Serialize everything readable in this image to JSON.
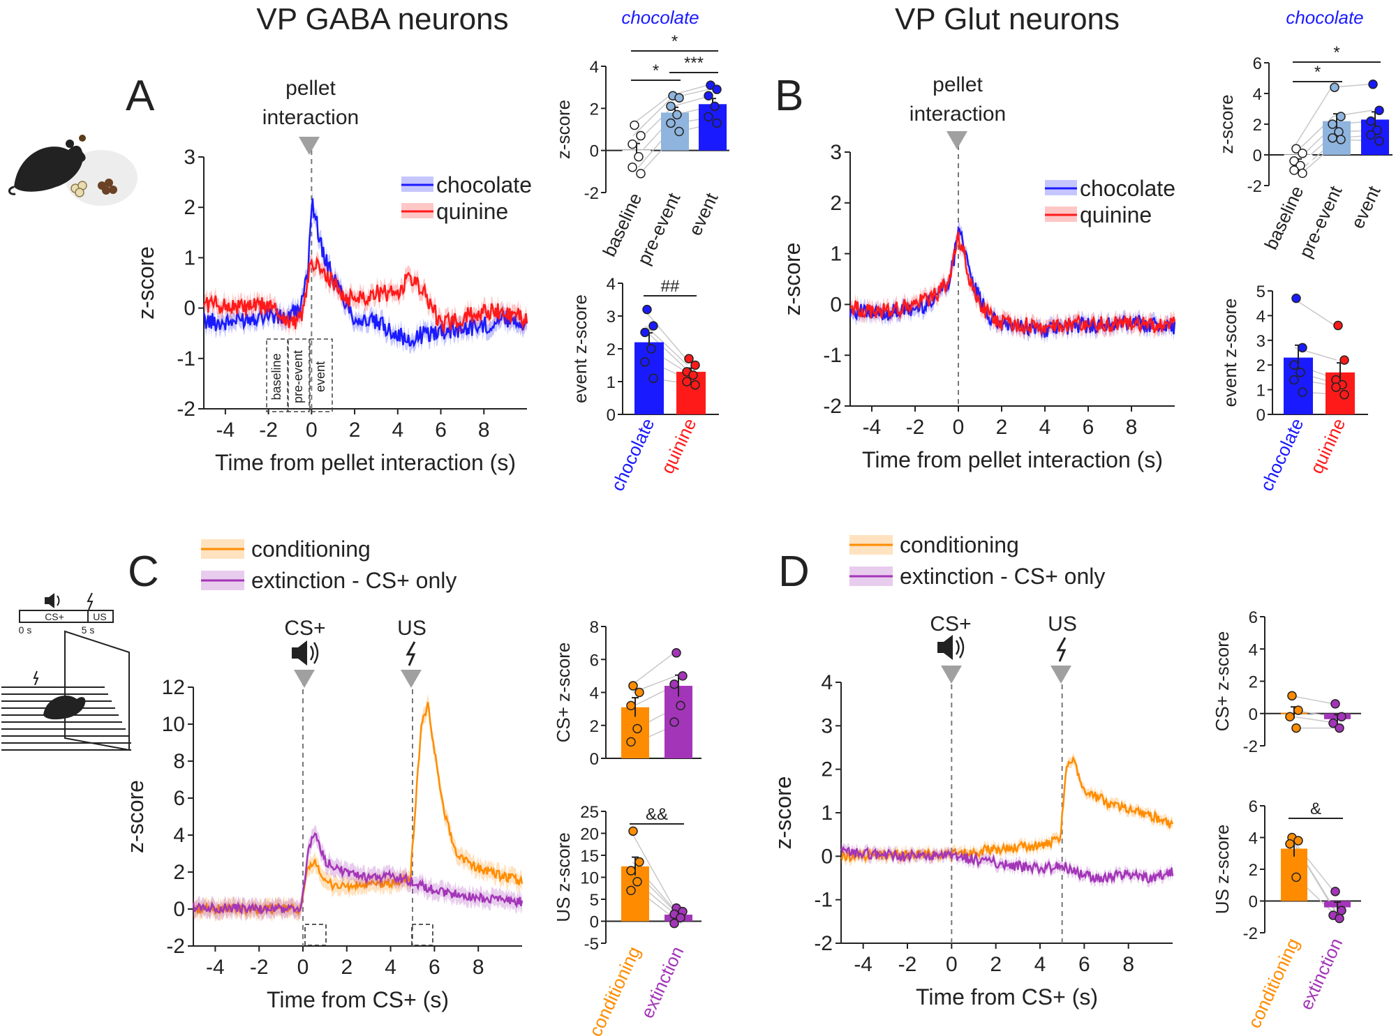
{
  "titles": {
    "gaba": "VP GABA neurons",
    "glut": "VP Glut neurons",
    "chocolate_top_A": "chocolate",
    "chocolate_top_B": "chocolate"
  },
  "panel_letters": {
    "A": "A",
    "B": "B",
    "C": "C",
    "D": "D"
  },
  "annotations": {
    "pellet_line1": "pellet",
    "pellet_line2": "interaction",
    "cs_plus": "CS+",
    "us": "US",
    "window_baseline": "baseline",
    "window_pre_event": "pre-event",
    "window_event": "event"
  },
  "schematic": {
    "timeline_cs": "CS+",
    "timeline_us": "US",
    "t0": "0 s",
    "t5": "5 s"
  },
  "colors": {
    "chocolate": "#1a1aff",
    "quinine": "#ff1a1a",
    "conditioning": "#ff8c00",
    "extinction": "#a335b8",
    "baseline_bar": "#ffffff",
    "pre_event_bar": "#8fb4dd",
    "grey_marker": "#a0a0a0"
  },
  "chart_data": [
    {
      "id": "A_trace",
      "type": "line",
      "title": "",
      "xlabel": "Time from pellet interaction (s)",
      "ylabel": "z-score",
      "xlim": [
        -5,
        10
      ],
      "ylim": [
        -2,
        3
      ],
      "xticks": [
        -4,
        -2,
        0,
        2,
        4,
        6,
        8
      ],
      "xtick_labels": [
        "-4",
        "-2",
        "0",
        "2",
        "4",
        "6",
        "8"
      ],
      "yticks": [
        -2,
        -1,
        0,
        1,
        2,
        3
      ],
      "ytick_labels": [
        "-2",
        "-1",
        "0",
        "1",
        "2",
        "3"
      ],
      "legend": [
        "chocolate",
        "quinine"
      ],
      "series": [
        {
          "name": "chocolate",
          "x": [
            -5,
            -4,
            -3,
            -2,
            -1.5,
            -1,
            -0.5,
            -0.2,
            0,
            0.2,
            0.5,
            1,
            1.5,
            2,
            3,
            4,
            4.5,
            5,
            6,
            7,
            8,
            9,
            10
          ],
          "values": [
            -0.25,
            -0.3,
            -0.2,
            -0.1,
            -0.2,
            -0.15,
            0.0,
            0.6,
            2.1,
            1.8,
            1.1,
            0.6,
            0.2,
            -0.2,
            -0.3,
            -0.5,
            -0.7,
            -0.55,
            -0.45,
            -0.4,
            -0.35,
            -0.2,
            -0.3
          ]
        },
        {
          "name": "quinine",
          "x": [
            -5,
            -4,
            -3,
            -2,
            -1.5,
            -1,
            -0.5,
            -0.2,
            0,
            0.2,
            0.5,
            1,
            1.5,
            2,
            3,
            4,
            4.5,
            5,
            5.5,
            6,
            7,
            8,
            9,
            10
          ],
          "values": [
            0.1,
            0.05,
            0.0,
            0.05,
            -0.1,
            -0.3,
            -0.2,
            0.4,
            1.0,
            0.85,
            0.7,
            0.5,
            0.2,
            0.2,
            0.3,
            0.3,
            0.6,
            0.45,
            0.1,
            -0.35,
            -0.2,
            -0.05,
            -0.1,
            -0.2
          ]
        }
      ]
    },
    {
      "id": "A_bar_top",
      "type": "bar",
      "subtitle": "chocolate",
      "ylabel": "z-score",
      "ylim": [
        -2,
        4
      ],
      "yticks": [
        -2,
        0,
        2,
        4
      ],
      "ytick_labels": [
        "-2",
        "0",
        "2",
        "4"
      ],
      "categories": [
        "baseline",
        "pre-event",
        "event"
      ],
      "values": [
        0.0,
        1.8,
        2.2
      ],
      "points": [
        [
          1.2,
          0.7,
          0.3,
          -0.3,
          -0.8,
          -1.1
        ],
        [
          2.6,
          2.5,
          2.1,
          1.7,
          1.3,
          0.9
        ],
        [
          3.1,
          2.9,
          2.6,
          2.1,
          1.6,
          1.3
        ]
      ],
      "significance": [
        {
          "pair": [
            "baseline",
            "pre-event"
          ],
          "label": "*"
        },
        {
          "pair": [
            "pre-event",
            "event"
          ],
          "label": "***"
        },
        {
          "pair": [
            "baseline",
            "event"
          ],
          "label": "*"
        }
      ]
    },
    {
      "id": "A_bar_bottom",
      "type": "bar",
      "ylabel": "event z-score",
      "ylim": [
        0,
        4
      ],
      "yticks": [
        0,
        1,
        2,
        3,
        4
      ],
      "ytick_labels": [
        "0",
        "1",
        "2",
        "3",
        "4"
      ],
      "categories": [
        "chocolate",
        "quinine"
      ],
      "values": [
        2.2,
        1.3
      ],
      "points": [
        [
          3.2,
          2.7,
          2.5,
          2.0,
          1.6,
          1.1
        ],
        [
          1.7,
          1.5,
          1.3,
          1.2,
          1.0,
          0.9
        ]
      ],
      "significance": [
        {
          "pair": [
            "chocolate",
            "quinine"
          ],
          "label": "##"
        }
      ]
    },
    {
      "id": "B_trace",
      "type": "line",
      "xlabel": "Time from pellet interaction (s)",
      "ylabel": "z-score",
      "xlim": [
        -5,
        10
      ],
      "ylim": [
        -2,
        3
      ],
      "xticks": [
        -4,
        -2,
        0,
        2,
        4,
        6,
        8
      ],
      "xtick_labels": [
        "-4",
        "-2",
        "0",
        "2",
        "4",
        "6",
        "8"
      ],
      "yticks": [
        -2,
        -1,
        0,
        1,
        2,
        3
      ],
      "ytick_labels": [
        "-2",
        "-1",
        "0",
        "1",
        "2",
        "3"
      ],
      "legend": [
        "chocolate",
        "quinine"
      ],
      "series": [
        {
          "name": "chocolate",
          "x": [
            -5,
            -4,
            -3,
            -2,
            -1.5,
            -1,
            -0.5,
            -0.2,
            0,
            0.2,
            0.5,
            1,
            1.5,
            2,
            3,
            4,
            5,
            6,
            7,
            8,
            9,
            10
          ],
          "values": [
            -0.1,
            -0.2,
            -0.15,
            -0.1,
            0.0,
            0.2,
            0.4,
            0.9,
            1.6,
            1.3,
            0.6,
            0.1,
            -0.3,
            -0.4,
            -0.45,
            -0.5,
            -0.45,
            -0.4,
            -0.4,
            -0.35,
            -0.4,
            -0.45
          ]
        },
        {
          "name": "quinine",
          "x": [
            -5,
            -4,
            -3,
            -2,
            -1.5,
            -1,
            -0.5,
            -0.2,
            0,
            0.2,
            0.5,
            1,
            1.5,
            2,
            3,
            4,
            5,
            6,
            7,
            8,
            9,
            10
          ],
          "values": [
            -0.05,
            -0.15,
            -0.1,
            0.0,
            0.1,
            0.2,
            0.45,
            0.9,
            1.3,
            1.1,
            0.5,
            0.0,
            -0.25,
            -0.35,
            -0.4,
            -0.45,
            -0.4,
            -0.35,
            -0.4,
            -0.35,
            -0.45,
            -0.4
          ]
        }
      ]
    },
    {
      "id": "B_bar_top",
      "type": "bar",
      "subtitle": "chocolate",
      "ylabel": "z-score",
      "ylim": [
        -2,
        6
      ],
      "yticks": [
        -2,
        0,
        2,
        4,
        6
      ],
      "ytick_labels": [
        "-2",
        "0",
        "2",
        "4",
        "6"
      ],
      "categories": [
        "baseline",
        "pre-event",
        "event"
      ],
      "values": [
        -0.5,
        2.2,
        2.3
      ],
      "points": [
        [
          0.4,
          0.1,
          -0.4,
          -0.7,
          -1.0,
          -1.2
        ],
        [
          4.4,
          2.5,
          2.0,
          1.5,
          1.1,
          1.0
        ],
        [
          4.6,
          2.9,
          2.2,
          1.6,
          1.3,
          0.9
        ]
      ],
      "significance": [
        {
          "pair": [
            "baseline",
            "pre-event"
          ],
          "label": "*"
        },
        {
          "pair": [
            "baseline",
            "event"
          ],
          "label": "*"
        }
      ]
    },
    {
      "id": "B_bar_bottom",
      "type": "bar",
      "ylabel": "event z-score",
      "ylim": [
        0,
        5
      ],
      "yticks": [
        0,
        1,
        2,
        3,
        4,
        5
      ],
      "ytick_labels": [
        "0",
        "1",
        "2",
        "3",
        "4",
        "5"
      ],
      "categories": [
        "chocolate",
        "quinine"
      ],
      "values": [
        2.3,
        1.7
      ],
      "points": [
        [
          4.7,
          2.7,
          2.0,
          1.7,
          1.4,
          0.9
        ],
        [
          3.6,
          2.2,
          1.4,
          1.2,
          1.1,
          0.8
        ]
      ]
    },
    {
      "id": "C_trace",
      "type": "line",
      "xlabel": "Time from CS+ (s)",
      "ylabel": "z-score",
      "xlim": [
        -5,
        10
      ],
      "ylim": [
        -2,
        12
      ],
      "xticks": [
        -4,
        -2,
        0,
        2,
        4,
        6,
        8
      ],
      "xtick_labels": [
        "-4",
        "-2",
        "0",
        "2",
        "4",
        "6",
        "8"
      ],
      "yticks": [
        -2,
        0,
        2,
        4,
        6,
        8,
        10,
        12
      ],
      "ytick_labels": [
        "-2",
        "0",
        "2",
        "4",
        "6",
        "8",
        "10",
        "12"
      ],
      "legend": [
        "conditioning",
        "extinction - CS+ only"
      ],
      "series": [
        {
          "name": "conditioning",
          "x": [
            -5,
            -2,
            -0.1,
            0.2,
            0.6,
            1,
            2,
            3,
            4,
            4.9,
            5.1,
            5.4,
            5.7,
            6,
            6.5,
            7,
            8,
            9,
            10
          ],
          "values": [
            0.0,
            0.0,
            0.0,
            2.0,
            2.6,
            1.4,
            1.2,
            1.3,
            1.4,
            1.6,
            5.0,
            10.0,
            11.0,
            8.5,
            5.0,
            3.0,
            2.2,
            1.8,
            1.5
          ]
        },
        {
          "name": "extinction - CS+ only",
          "x": [
            -5,
            -2,
            -0.1,
            0.3,
            0.6,
            1,
            2,
            3,
            4,
            5,
            6,
            7,
            8,
            9,
            10
          ],
          "values": [
            0.1,
            0.0,
            0.0,
            3.5,
            4.0,
            2.6,
            1.9,
            1.7,
            1.8,
            1.5,
            1.0,
            0.8,
            0.6,
            0.5,
            0.4
          ]
        }
      ]
    },
    {
      "id": "C_bar_top",
      "type": "bar",
      "ylabel": "CS+ z-score",
      "ylim": [
        0,
        8
      ],
      "yticks": [
        0,
        2,
        4,
        6,
        8
      ],
      "ytick_labels": [
        "0",
        "2",
        "4",
        "6",
        "8"
      ],
      "categories": [
        "conditioning",
        "extinction"
      ],
      "values": [
        3.1,
        4.4
      ],
      "points": [
        [
          4.4,
          4.0,
          3.2,
          1.8,
          1.0
        ],
        [
          6.4,
          5.0,
          4.5,
          3.2,
          2.2
        ]
      ]
    },
    {
      "id": "C_bar_bottom",
      "type": "bar",
      "ylabel": "US z-score",
      "ylim": [
        -5,
        25
      ],
      "yticks": [
        -5,
        0,
        5,
        10,
        15,
        20,
        25
      ],
      "ytick_labels": [
        "-5",
        "0",
        "5",
        "10",
        "15",
        "20",
        "25"
      ],
      "categories": [
        "conditioning",
        "extinction"
      ],
      "values": [
        12.5,
        1.5
      ],
      "points": [
        [
          20.5,
          13.5,
          11.5,
          9.0,
          7.0
        ],
        [
          3.0,
          2.2,
          1.6,
          0.8,
          -0.5
        ]
      ],
      "significance": [
        {
          "pair": [
            "conditioning",
            "extinction"
          ],
          "label": "&&"
        }
      ]
    },
    {
      "id": "D_trace",
      "type": "line",
      "xlabel": "Time from CS+ (s)",
      "ylabel": "z-score",
      "xlim": [
        -5,
        10
      ],
      "ylim": [
        -2,
        4
      ],
      "xticks": [
        -4,
        -2,
        0,
        2,
        4,
        6,
        8
      ],
      "xtick_labels": [
        "-4",
        "-2",
        "0",
        "2",
        "4",
        "6",
        "8"
      ],
      "yticks": [
        -2,
        -1,
        0,
        1,
        2,
        3,
        4
      ],
      "ytick_labels": [
        "-2",
        "-1",
        "0",
        "1",
        "2",
        "3",
        "4"
      ],
      "legend": [
        "conditioning",
        "extinction - CS+ only"
      ],
      "series": [
        {
          "name": "conditioning",
          "x": [
            -5,
            -2,
            0,
            2,
            4,
            4.9,
            5.2,
            5.5,
            6,
            7,
            8,
            9,
            10
          ],
          "values": [
            0.0,
            0.05,
            0.05,
            0.15,
            0.25,
            0.35,
            2.0,
            2.3,
            1.5,
            1.25,
            1.1,
            0.95,
            0.7
          ]
        },
        {
          "name": "extinction - CS+ only",
          "x": [
            -5,
            -2,
            0,
            2,
            4,
            5,
            6,
            7,
            8,
            9,
            10
          ],
          "values": [
            0.1,
            0.0,
            0.0,
            -0.15,
            -0.3,
            -0.2,
            -0.45,
            -0.5,
            -0.4,
            -0.5,
            -0.35
          ]
        }
      ]
    },
    {
      "id": "D_bar_top",
      "type": "bar",
      "ylabel": "CS+ z-score",
      "ylim": [
        -2,
        6
      ],
      "yticks": [
        -2,
        0,
        2,
        4,
        6
      ],
      "ytick_labels": [
        "-2",
        "0",
        "2",
        "4",
        "6"
      ],
      "categories": [
        "conditioning",
        "extinction"
      ],
      "values": [
        0.05,
        -0.35
      ],
      "points": [
        [
          1.1,
          0.2,
          -0.2,
          -0.9
        ],
        [
          0.6,
          -0.2,
          -0.6,
          -0.9
        ]
      ]
    },
    {
      "id": "D_bar_bottom",
      "type": "bar",
      "ylabel": "US z-score",
      "ylim": [
        -2,
        6
      ],
      "yticks": [
        -2,
        0,
        2,
        4,
        6
      ],
      "ytick_labels": [
        "-2",
        "0",
        "2",
        "4",
        "6"
      ],
      "categories": [
        "conditioning",
        "extinction"
      ],
      "values": [
        3.3,
        -0.4
      ],
      "points": [
        [
          4.0,
          3.8,
          3.6,
          1.5
        ],
        [
          0.6,
          -0.6,
          -0.9,
          -1.1
        ]
      ],
      "significance": [
        {
          "pair": [
            "conditioning",
            "extinction"
          ],
          "label": "&"
        }
      ]
    }
  ]
}
